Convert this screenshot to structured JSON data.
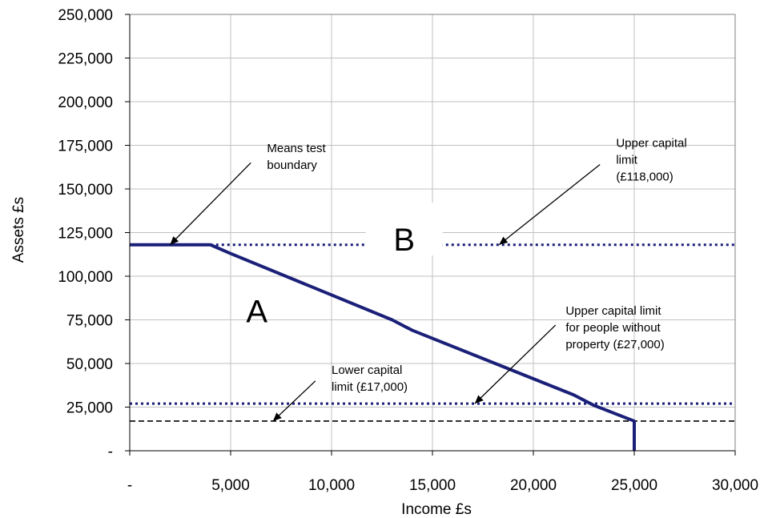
{
  "chart_data": {
    "type": "line",
    "xlabel": "Income £s",
    "ylabel": "Assets £s",
    "xlim": [
      0,
      30000
    ],
    "ylim": [
      0,
      250000
    ],
    "x_ticks": [
      0,
      5000,
      10000,
      15000,
      20000,
      25000,
      30000
    ],
    "x_tick_labels": [
      "-",
      "5,000",
      "10,000",
      "15,000",
      "20,000",
      "25,000",
      "30,000"
    ],
    "y_ticks": [
      0,
      25000,
      50000,
      75000,
      100000,
      125000,
      150000,
      175000,
      200000,
      225000,
      250000
    ],
    "y_tick_labels": [
      "-",
      "25,000",
      "50,000",
      "75,000",
      "100,000",
      "125,000",
      "150,000",
      "175,000",
      "200,000",
      "225,000",
      "250,000"
    ],
    "grid": true,
    "series": [
      {
        "style": "solid",
        "color": "#1a1f78",
        "x": [
          0,
          4000,
          5000,
          13000,
          14000,
          22000,
          23000,
          25000,
          25000
        ],
        "y": [
          118000,
          118000,
          113000,
          75000,
          69000,
          32000,
          26000,
          17000,
          0
        ]
      }
    ],
    "reference_lines": [
      {
        "y": 118000,
        "style": "dotted",
        "color": "#1a1f78",
        "x_range": [
          4000,
          30000
        ]
      },
      {
        "y": 27000,
        "style": "dotted",
        "color": "#1a1f78",
        "x_range": [
          0,
          30000
        ]
      },
      {
        "y": 17000,
        "style": "dashed",
        "color": "#000000",
        "x_range": [
          0,
          30000
        ]
      }
    ],
    "annotations": [
      {
        "lines": [
          "Means test",
          "boundary"
        ],
        "text_at": [
          6800,
          171000
        ],
        "arrow_from": [
          6000,
          165000
        ],
        "arrow_to": [
          2000,
          118000
        ]
      },
      {
        "lines": [
          "Upper capital",
          "limit",
          "(£118,000)"
        ],
        "text_at": [
          24100,
          174000
        ],
        "arrow_from": [
          23300,
          164000
        ],
        "arrow_to": [
          18300,
          118000
        ]
      },
      {
        "lines": [
          "Upper capital limit",
          "for people without",
          "property (£27,000)"
        ],
        "text_at": [
          21600,
          78000
        ],
        "arrow_from": [
          21100,
          72000
        ],
        "arrow_to": [
          17100,
          27000
        ]
      },
      {
        "lines": [
          "Lower capital",
          "limit (£17,000)"
        ],
        "text_at": [
          10000,
          44000
        ],
        "arrow_from": [
          9200,
          40000
        ],
        "arrow_to": [
          7100,
          17000
        ]
      }
    ],
    "region_labels": [
      {
        "text": "A",
        "at": [
          6300,
          80000
        ]
      },
      {
        "text": "B",
        "at": [
          13600,
          121000
        ]
      }
    ]
  }
}
